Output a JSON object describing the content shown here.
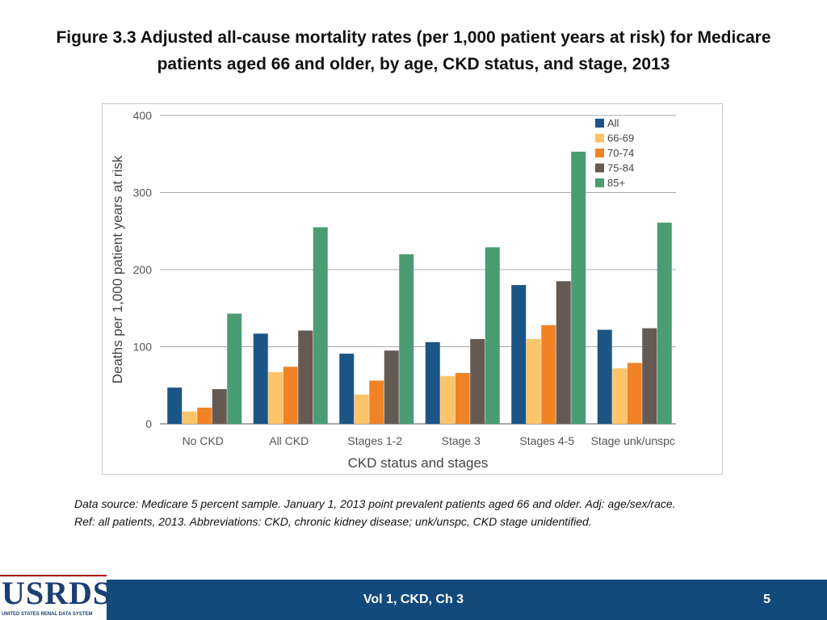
{
  "slide": {
    "title": "Figure 3.3  Adjusted all-cause mortality rates (per 1,000 patient years at risk) for Medicare patients aged 66 and older, by age, CKD status, and stage, 2013",
    "source_line1": "Data source: Medicare 5 percent sample. January 1, 2013 point prevalent patients aged 66 and older. Adj: age/sex/race.",
    "source_line2": "Ref: all patients, 2013. Abbreviations: CKD, chronic kidney disease; unk/unspc, CKD stage unidentified.",
    "footer_center": "Vol 1, CKD, Ch 3",
    "page_number": "5",
    "logo_text": "USRDS",
    "logo_subtext": "UNITED STATES RENAL DATA SYSTEM"
  },
  "chart_data": {
    "type": "bar",
    "title": "",
    "xlabel": "CKD status and stages",
    "ylabel": "Deaths per 1,000 patient years at risk",
    "ylim": [
      0,
      400
    ],
    "yticks": [
      0,
      100,
      200,
      300,
      400
    ],
    "grid": true,
    "legend_position": "top-right",
    "categories": [
      "No CKD",
      "All CKD",
      "Stages 1-2",
      "Stage 3",
      "Stages 4-5",
      "Stage unk/unspc"
    ],
    "series": [
      {
        "name": "All",
        "color": "#1b5586",
        "values": [
          47,
          117,
          91,
          106,
          180,
          122
        ]
      },
      {
        "name": "66-69",
        "color": "#fdc46a",
        "values": [
          16,
          67,
          38,
          62,
          110,
          72
        ]
      },
      {
        "name": "70-74",
        "color": "#f08326",
        "values": [
          21,
          74,
          56,
          66,
          128,
          79
        ]
      },
      {
        "name": "75-84",
        "color": "#655a52",
        "values": [
          45,
          121,
          95,
          110,
          185,
          124
        ]
      },
      {
        "name": "85+",
        "color": "#4a9c73",
        "values": [
          143,
          255,
          220,
          229,
          353,
          261
        ]
      }
    ]
  }
}
